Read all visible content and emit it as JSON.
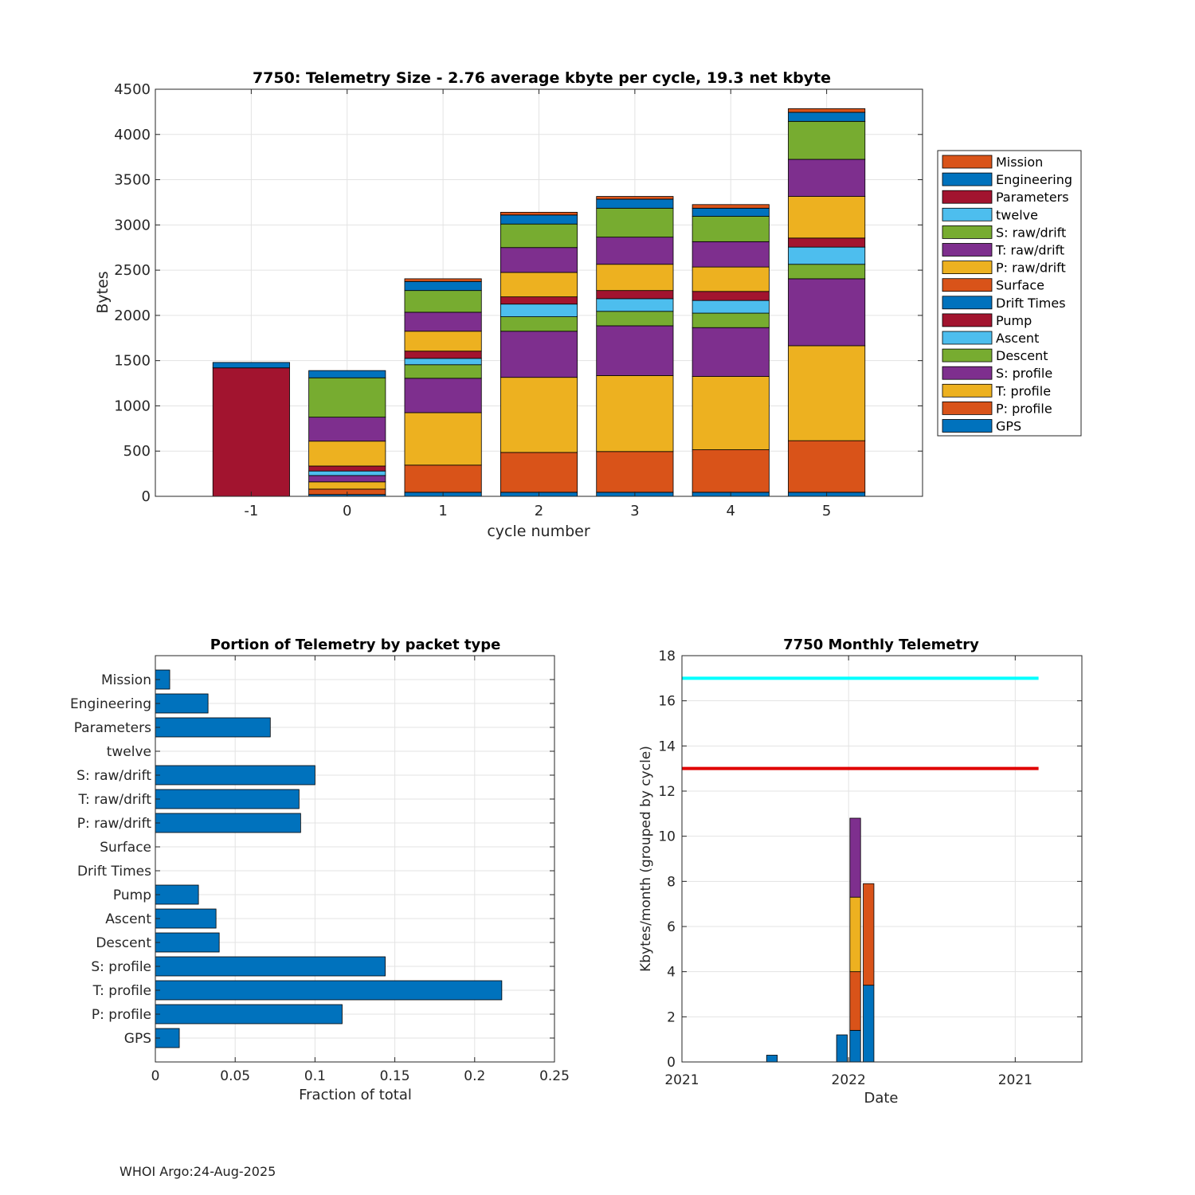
{
  "footer": "WHOI Argo:24-Aug-2025",
  "colors": {
    "GPS": "#0072BD",
    "P: profile": "#D95319",
    "T: profile": "#EDB120",
    "S: profile": "#7E2F8E",
    "Descent": "#77AC30",
    "Ascent": "#4DBEEE",
    "Pump": "#A2142F",
    "Drift Times": "#0072BD",
    "Surface": "#D95319",
    "P: raw/drift": "#EDB120",
    "T: raw/drift": "#7E2F8E",
    "S: raw/drift": "#77AC30",
    "twelve": "#4DBEEE",
    "Parameters": "#A2142F",
    "Engineering": "#0072BD",
    "Mission": "#D95319",
    "cyan_line": "#00FFFF",
    "red_line": "#E00000",
    "bar_blue": "#0072BD"
  },
  "chart_data": [
    {
      "id": "stacked",
      "type": "bar",
      "stacked": true,
      "title": "7750: Telemetry Size - 2.76 average kbyte per cycle,   19.3 net kbyte",
      "xlabel": "cycle number",
      "ylabel": "Bytes",
      "ylim": [
        0,
        4500
      ],
      "yticks": [
        0,
        500,
        1000,
        1500,
        2000,
        2500,
        3000,
        3500,
        4000,
        4500
      ],
      "xlim": [
        -2,
        6
      ],
      "categories": [
        "-1",
        "0",
        "1",
        "2",
        "3",
        "4",
        "5"
      ],
      "x": [
        -1,
        0,
        1,
        2,
        3,
        4,
        5
      ],
      "legend_order": [
        "Mission",
        "Engineering",
        "Parameters",
        "twelve",
        "S: raw/drift",
        "T: raw/drift",
        "P: raw/drift",
        "Surface",
        "Drift Times",
        "Pump",
        "Ascent",
        "Descent",
        "S: profile",
        "T: profile",
        "P: profile",
        "GPS"
      ],
      "legend_position": "right",
      "series": [
        {
          "name": "GPS",
          "values": [
            0,
            20,
            45,
            45,
            45,
            45,
            45
          ]
        },
        {
          "name": "P: profile",
          "values": [
            0,
            60,
            300,
            440,
            450,
            470,
            570
          ]
        },
        {
          "name": "T: profile",
          "values": [
            0,
            80,
            580,
            830,
            840,
            810,
            1050
          ]
        },
        {
          "name": "S: profile",
          "values": [
            0,
            70,
            380,
            510,
            550,
            540,
            740
          ]
        },
        {
          "name": "Descent",
          "values": [
            0,
            0,
            150,
            160,
            160,
            160,
            160
          ]
        },
        {
          "name": "Ascent",
          "values": [
            0,
            50,
            70,
            140,
            140,
            140,
            190
          ]
        },
        {
          "name": "Pump",
          "values": [
            0,
            55,
            80,
            80,
            90,
            100,
            100
          ]
        },
        {
          "name": "Drift Times",
          "values": [
            0,
            0,
            0,
            0,
            0,
            0,
            0
          ]
        },
        {
          "name": "Surface",
          "values": [
            0,
            0,
            0,
            0,
            0,
            0,
            0
          ]
        },
        {
          "name": "P: raw/drift",
          "values": [
            0,
            275,
            220,
            270,
            290,
            270,
            460
          ]
        },
        {
          "name": "T: raw/drift",
          "values": [
            0,
            265,
            210,
            275,
            300,
            280,
            410
          ]
        },
        {
          "name": "S: raw/drift",
          "values": [
            0,
            435,
            240,
            260,
            320,
            280,
            420
          ]
        },
        {
          "name": "twelve",
          "values": [
            0,
            0,
            0,
            0,
            0,
            0,
            0
          ]
        },
        {
          "name": "Parameters",
          "values": [
            1420,
            0,
            0,
            0,
            0,
            0,
            0
          ]
        },
        {
          "name": "Engineering",
          "values": [
            60,
            80,
            100,
            100,
            100,
            90,
            100
          ]
        },
        {
          "name": "Mission",
          "values": [
            0,
            0,
            30,
            30,
            30,
            40,
            40
          ]
        }
      ]
    },
    {
      "id": "portion",
      "type": "bar",
      "orientation": "horizontal",
      "title": "Portion of Telemetry by packet type",
      "xlabel": "Fraction of total",
      "xlim": [
        0,
        0.25
      ],
      "xticks": [
        0,
        0.05,
        0.1,
        0.15,
        0.2,
        0.25
      ],
      "xtick_labels": [
        "0",
        "0.05",
        "0.1",
        "0.15",
        "0.2",
        "0.25"
      ],
      "categories": [
        "GPS",
        "P: profile",
        "T: profile",
        "S: profile",
        "Descent",
        "Ascent",
        "Pump",
        "Drift Times",
        "Surface",
        "P: raw/drift",
        "T: raw/drift",
        "S: raw/drift",
        "twelve",
        "Parameters",
        "Engineering",
        "Mission"
      ],
      "values": [
        0.015,
        0.117,
        0.217,
        0.144,
        0.04,
        0.038,
        0.027,
        0,
        0,
        0.091,
        0.09,
        0.1,
        0,
        0.072,
        0.033,
        0.009
      ]
    },
    {
      "id": "monthly",
      "type": "bar",
      "stacked": true,
      "title": "7750 Monthly Telemetry",
      "xlabel": "Date",
      "ylabel": "Kbytes/month (grouped by cycle)",
      "ylim": [
        0,
        18
      ],
      "yticks": [
        0,
        2,
        4,
        6,
        8,
        10,
        12,
        14,
        16,
        18
      ],
      "xlim": [
        0,
        12
      ],
      "xticks": [
        0,
        5,
        10
      ],
      "xtick_labels": [
        "2021",
        "2022",
        "2021"
      ],
      "bars": [
        {
          "x": 2.7,
          "segments": [
            {
              "value": 0.3,
              "color": "#0072BD"
            }
          ]
        },
        {
          "x": 4.8,
          "segments": [
            {
              "value": 1.2,
              "color": "#0072BD"
            }
          ]
        },
        {
          "x": 5.2,
          "segments": [
            {
              "value": 1.4,
              "color": "#0072BD"
            },
            {
              "value": 2.6,
              "color": "#D95319"
            },
            {
              "value": 3.3,
              "color": "#EDB120"
            },
            {
              "value": 3.5,
              "color": "#7E2F8E"
            }
          ]
        },
        {
          "x": 5.6,
          "segments": [
            {
              "value": 3.4,
              "color": "#0072BD"
            },
            {
              "value": 4.5,
              "color": "#D95319"
            }
          ]
        }
      ],
      "lines": [
        {
          "y": 17,
          "x": [
            0,
            10.7
          ],
          "color": "#00FFFF"
        },
        {
          "y": 13,
          "x": [
            0,
            10.7
          ],
          "color": "#E00000"
        }
      ]
    }
  ]
}
